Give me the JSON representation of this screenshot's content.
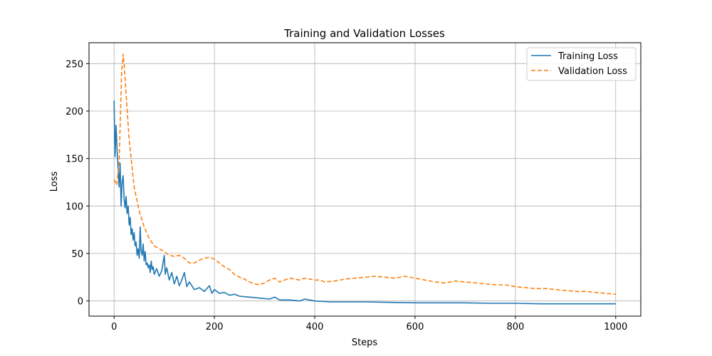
{
  "chart_data": {
    "type": "line",
    "title": "Training and Validation Losses",
    "xlabel": "Steps",
    "ylabel": "Loss",
    "xlim": [
      -50,
      1050
    ],
    "ylim": [
      -16,
      272
    ],
    "xticks": [
      0,
      200,
      400,
      600,
      800,
      1000
    ],
    "yticks": [
      0,
      50,
      100,
      150,
      200,
      250
    ],
    "grid": true,
    "legend_position": "top-right",
    "series": [
      {
        "name": "Training Loss",
        "color": "#1f77b4",
        "style": "solid",
        "x": [
          0,
          2,
          4,
          6,
          8,
          10,
          12,
          14,
          16,
          18,
          20,
          22,
          24,
          26,
          28,
          30,
          32,
          34,
          36,
          38,
          40,
          42,
          44,
          46,
          48,
          50,
          52,
          54,
          56,
          58,
          60,
          62,
          64,
          66,
          68,
          70,
          72,
          74,
          76,
          78,
          80,
          85,
          90,
          95,
          100,
          102,
          105,
          110,
          115,
          120,
          125,
          130,
          135,
          140,
          145,
          150,
          160,
          170,
          180,
          190,
          195,
          200,
          210,
          220,
          230,
          240,
          250,
          270,
          290,
          310,
          320,
          330,
          350,
          370,
          380,
          400,
          430,
          460,
          500,
          550,
          600,
          650,
          700,
          750,
          800,
          850,
          900,
          950,
          1000
        ],
        "y": [
          211,
          152,
          185,
          158,
          140,
          120,
          145,
          100,
          125,
          132,
          108,
          98,
          110,
          92,
          100,
          80,
          88,
          70,
          76,
          64,
          72,
          58,
          62,
          48,
          55,
          45,
          78,
          52,
          48,
          60,
          42,
          52,
          38,
          40,
          35,
          38,
          30,
          42,
          33,
          36,
          28,
          34,
          26,
          32,
          48,
          28,
          35,
          22,
          30,
          18,
          26,
          16,
          22,
          30,
          15,
          20,
          12,
          14,
          10,
          16,
          8,
          12,
          8,
          9,
          6,
          7,
          5,
          4,
          3,
          2,
          4,
          1,
          1,
          0,
          2,
          0,
          -1,
          -1,
          -1,
          -1.5,
          -2,
          -2,
          -2,
          -2.5,
          -2.5,
          -3,
          -3,
          -3,
          -3
        ]
      },
      {
        "name": "Validation Loss",
        "color": "#ff7f0e",
        "style": "dashed",
        "x": [
          0,
          5,
          10,
          15,
          18,
          20,
          25,
          30,
          40,
          50,
          60,
          70,
          80,
          90,
          100,
          110,
          120,
          130,
          140,
          150,
          160,
          170,
          180,
          190,
          200,
          210,
          220,
          230,
          240,
          250,
          260,
          270,
          280,
          290,
          300,
          310,
          320,
          330,
          340,
          350,
          360,
          370,
          380,
          390,
          400,
          410,
          420,
          440,
          460,
          480,
          500,
          520,
          540,
          560,
          580,
          600,
          620,
          640,
          660,
          680,
          700,
          720,
          740,
          760,
          780,
          800,
          820,
          840,
          860,
          880,
          900,
          920,
          940,
          960,
          980,
          1000
        ],
        "y": [
          128,
          122,
          145,
          240,
          260,
          250,
          210,
          170,
          120,
          95,
          78,
          66,
          58,
          55,
          52,
          48,
          47,
          48,
          45,
          40,
          40,
          43,
          45,
          46,
          44,
          40,
          36,
          33,
          28,
          25,
          23,
          20,
          18,
          17,
          19,
          22,
          24,
          20,
          22,
          24,
          23,
          22,
          24,
          23,
          22,
          22,
          20,
          21,
          23,
          24,
          25,
          26,
          25,
          24,
          26,
          24,
          22,
          20,
          19,
          21,
          20,
          19,
          18,
          17,
          17,
          15,
          14,
          13,
          13,
          12,
          11,
          10,
          10,
          9,
          8,
          7
        ]
      }
    ]
  }
}
